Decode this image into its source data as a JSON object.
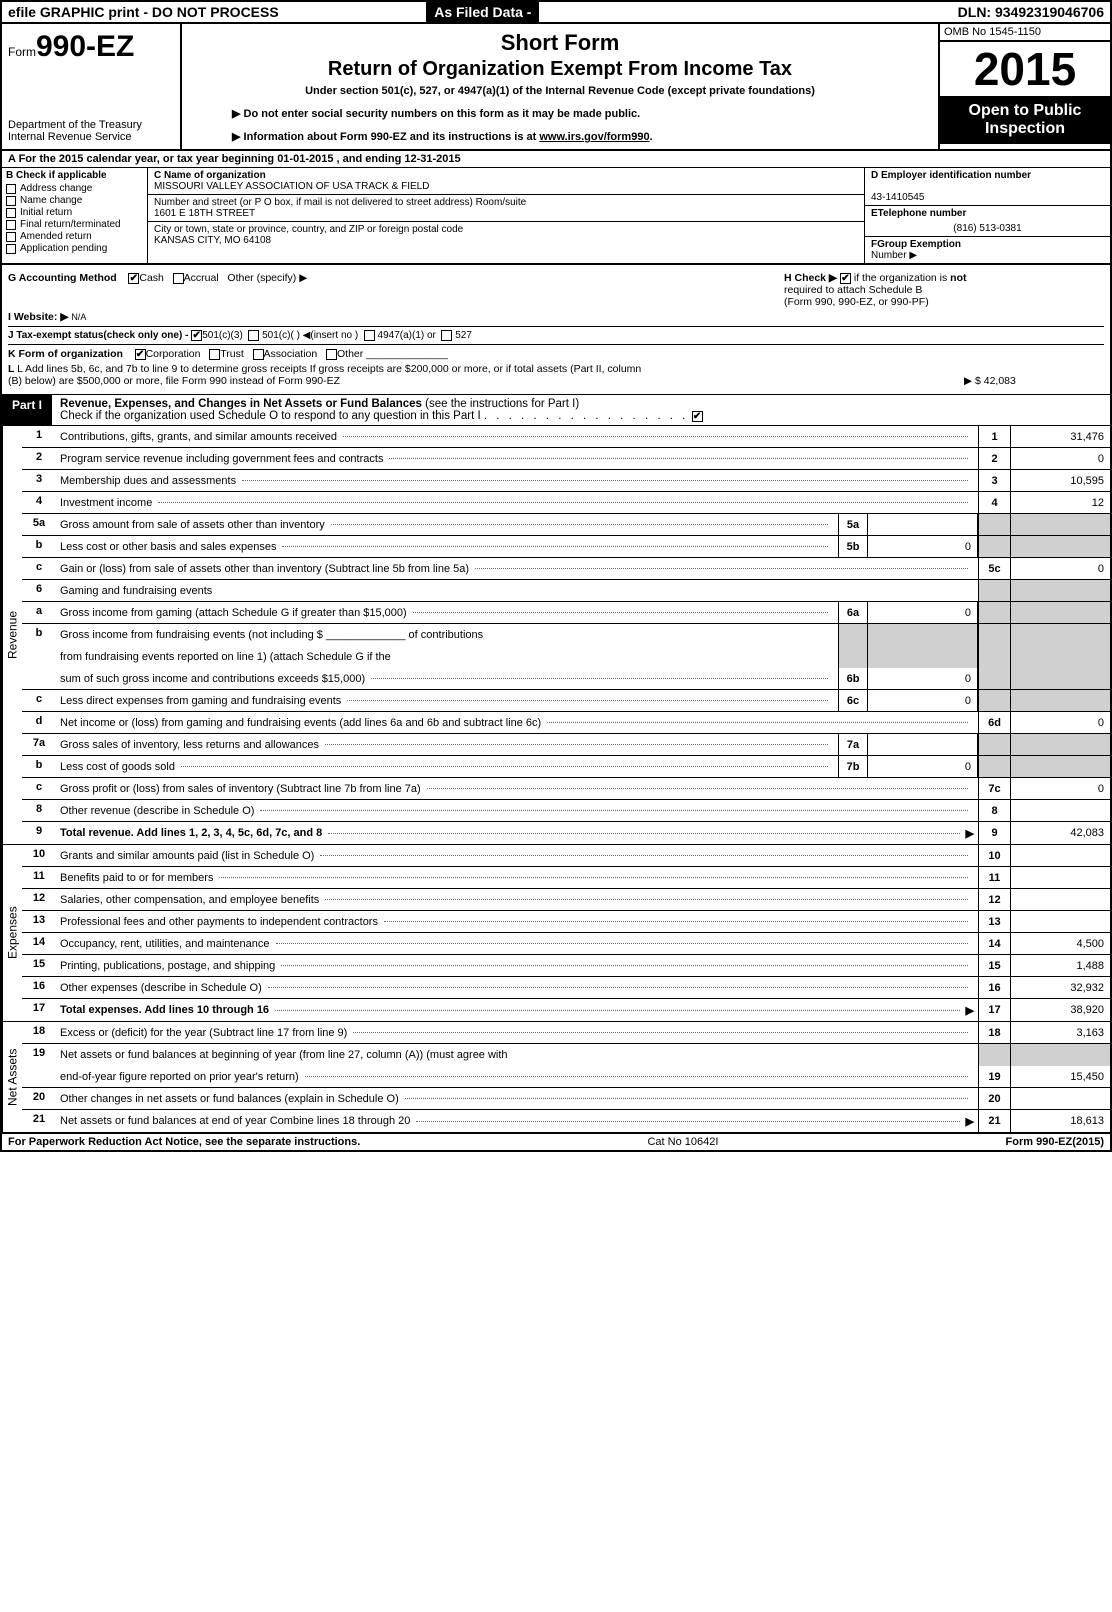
{
  "topbar": {
    "left": "efile GRAPHIC print - DO NOT PROCESS",
    "filed": "As Filed Data -",
    "dln": "DLN: 93492319046706"
  },
  "header": {
    "form_prefix": "Form",
    "form_no": "990-EZ",
    "dept1": "Department of the Treasury",
    "dept2": "Internal Revenue Service",
    "title1": "Short Form",
    "title2": "Return of Organization Exempt From Income Tax",
    "sub": "Under section 501(c), 527, or 4947(a)(1) of the Internal Revenue Code (except private foundations)",
    "note1": "▶ Do not enter social security numbers on this form as it may be made public.",
    "note2_a": "▶ Information about Form 990-EZ and its instructions is at ",
    "note2_b": "www.irs.gov/form990",
    "note2_c": ".",
    "omb": "OMB No 1545-1150",
    "year": "2015",
    "inspect1": "Open to Public",
    "inspect2": "Inspection"
  },
  "rowA": "A  For the 2015 calendar year, or tax year beginning 01-01-2015                  , and ending 12-31-2015",
  "colB": {
    "hdr": "B  Check if applicable",
    "items": [
      "Address change",
      "Name change",
      "Initial return",
      "Final return/terminated",
      "Amended return",
      "Application pending"
    ]
  },
  "colC": {
    "name_lbl": "C Name of organization",
    "name": "MISSOURI VALLEY ASSOCIATION OF USA TRACK & FIELD",
    "addr_lbl": "Number and street (or P O box, if mail is not delivered to street address) Room/suite",
    "addr": "1601 E 18TH STREET",
    "city_lbl": "City or town, state or province, country, and ZIP or foreign postal code",
    "city": "KANSAS CITY, MO  64108"
  },
  "colD": {
    "ein_lbl": "D Employer identification number",
    "ein": "43-1410545",
    "tel_lbl": "ETelephone number",
    "tel": "(816) 513-0381",
    "grp_lbl": "FGroup Exemption",
    "grp2": "Number    ▶"
  },
  "mid": {
    "g": "G Accounting Method",
    "g_cash": "Cash",
    "g_accrual": "Accrual",
    "g_other": "Other (specify) ▶",
    "h1": "H   Check ▶",
    "h2": "if the organization is ",
    "h_not": "not",
    "h3": "required to attach Schedule B",
    "h4": "(Form 990, 990-EZ, or 990-PF)",
    "i": "I Website: ▶",
    "i_val": "N/A",
    "j": "J Tax-exempt status(check only one) -",
    "j1": "501(c)(3)",
    "j2": "501(c)(  )  ◀(insert no )",
    "j3": "4947(a)(1) or",
    "j4": "527",
    "k": "K Form of organization",
    "k1": "Corporation",
    "k2": "Trust",
    "k3": "Association",
    "k4": "Other",
    "l1": "L Add lines 5b, 6c, and 7b to line 9 to determine gross receipts  If gross receipts are $200,000 or more, or if total assets (Part II, column",
    "l2": "(B) below) are $500,000 or more, file Form 990 instead of Form 990-EZ",
    "l_val": "▶ $ 42,083"
  },
  "part1": {
    "tab": "Part I",
    "title_b": "Revenue, Expenses, and Changes in Net Assets or Fund Balances",
    "title_r": " (see the instructions for Part I)",
    "check": "Check if the organization used Schedule O to respond to any question in this Part I"
  },
  "sides": {
    "rev": "Revenue",
    "exp": "Expenses",
    "net": "Net Assets"
  },
  "lines": {
    "1": {
      "n": "1",
      "d": "Contributions, gifts, grants, and similar amounts received",
      "rn": "1",
      "rv": "31,476"
    },
    "2": {
      "n": "2",
      "d": "Program service revenue including government fees and contracts",
      "rn": "2",
      "rv": "0"
    },
    "3": {
      "n": "3",
      "d": "Membership dues and assessments",
      "rn": "3",
      "rv": "10,595"
    },
    "4": {
      "n": "4",
      "d": "Investment income",
      "rn": "4",
      "rv": "12"
    },
    "5a": {
      "n": "5a",
      "d": "Gross amount from sale of assets other than inventory",
      "mn": "5a",
      "mv": ""
    },
    "5b": {
      "n": "b",
      "d": "Less  cost or other basis and sales expenses",
      "mn": "5b",
      "mv": "0"
    },
    "5c": {
      "n": "c",
      "d": "Gain or (loss) from sale of assets other than inventory (Subtract line 5b from line 5a)",
      "rn": "5c",
      "rv": "0"
    },
    "6": {
      "n": "6",
      "d": "Gaming and fundraising events"
    },
    "6a": {
      "n": "a",
      "d": "Gross income from gaming (attach Schedule G if greater than $15,000)",
      "mn": "6a",
      "mv": "0"
    },
    "6b1": {
      "n": "b",
      "d": "Gross income from fundraising events (not including $ _____________ of contributions"
    },
    "6b2": {
      "d": "from fundraising events reported on line 1) (attach Schedule G if the"
    },
    "6b3": {
      "d": "sum of such gross income and contributions exceeds $15,000)",
      "mn": "6b",
      "mv": "0"
    },
    "6c": {
      "n": "c",
      "d": "Less  direct expenses from gaming and fundraising events",
      "mn": "6c",
      "mv": "0"
    },
    "6d": {
      "n": "d",
      "d": "Net income or (loss) from gaming and fundraising events (add lines 6a and 6b and subtract line 6c)",
      "rn": "6d",
      "rv": "0"
    },
    "7a": {
      "n": "7a",
      "d": "Gross sales of inventory, less returns and allowances",
      "mn": "7a",
      "mv": ""
    },
    "7b": {
      "n": "b",
      "d": "Less  cost of goods sold",
      "mn": "7b",
      "mv": "0"
    },
    "7c": {
      "n": "c",
      "d": "Gross profit or (loss) from sales of inventory (Subtract line 7b from line 7a)",
      "rn": "7c",
      "rv": "0"
    },
    "8": {
      "n": "8",
      "d": "Other revenue (describe in Schedule O)",
      "rn": "8",
      "rv": ""
    },
    "9": {
      "n": "9",
      "d": "Total revenue. Add lines 1, 2, 3, 4, 5c, 6d, 7c, and 8",
      "rn": "9",
      "rv": "42,083",
      "bold": true,
      "arrow": true
    },
    "10": {
      "n": "10",
      "d": "Grants and similar amounts paid (list in Schedule O)",
      "rn": "10",
      "rv": ""
    },
    "11": {
      "n": "11",
      "d": "Benefits paid to or for members",
      "rn": "11",
      "rv": ""
    },
    "12": {
      "n": "12",
      "d": "Salaries, other compensation, and employee benefits",
      "rn": "12",
      "rv": ""
    },
    "13": {
      "n": "13",
      "d": "Professional fees and other payments to independent contractors",
      "rn": "13",
      "rv": ""
    },
    "14": {
      "n": "14",
      "d": "Occupancy, rent, utilities, and maintenance",
      "rn": "14",
      "rv": "4,500"
    },
    "15": {
      "n": "15",
      "d": "Printing, publications, postage, and shipping",
      "rn": "15",
      "rv": "1,488"
    },
    "16": {
      "n": "16",
      "d": "Other expenses (describe in Schedule O)",
      "rn": "16",
      "rv": "32,932"
    },
    "17": {
      "n": "17",
      "d": "Total expenses. Add lines 10 through 16",
      "rn": "17",
      "rv": "38,920",
      "bold": true,
      "arrow": true
    },
    "18": {
      "n": "18",
      "d": "Excess or (deficit) for the year (Subtract line 17 from line 9)",
      "rn": "18",
      "rv": "3,163"
    },
    "19a": {
      "n": "19",
      "d": "Net assets or fund balances at beginning of year (from line 27, column (A)) (must agree with"
    },
    "19b": {
      "d": "end-of-year figure reported on prior year's return)",
      "rn": "19",
      "rv": "15,450"
    },
    "20": {
      "n": "20",
      "d": "Other changes in net assets or fund balances (explain in Schedule O)",
      "rn": "20",
      "rv": ""
    },
    "21": {
      "n": "21",
      "d": "Net assets or fund balances at end of year  Combine lines 18 through 20",
      "rn": "21",
      "rv": "18,613",
      "arrow": true
    }
  },
  "footer": {
    "l": "For Paperwork Reduction Act Notice, see the separate instructions.",
    "c": "Cat No 10642I",
    "r": "Form 990-EZ (2015)"
  }
}
